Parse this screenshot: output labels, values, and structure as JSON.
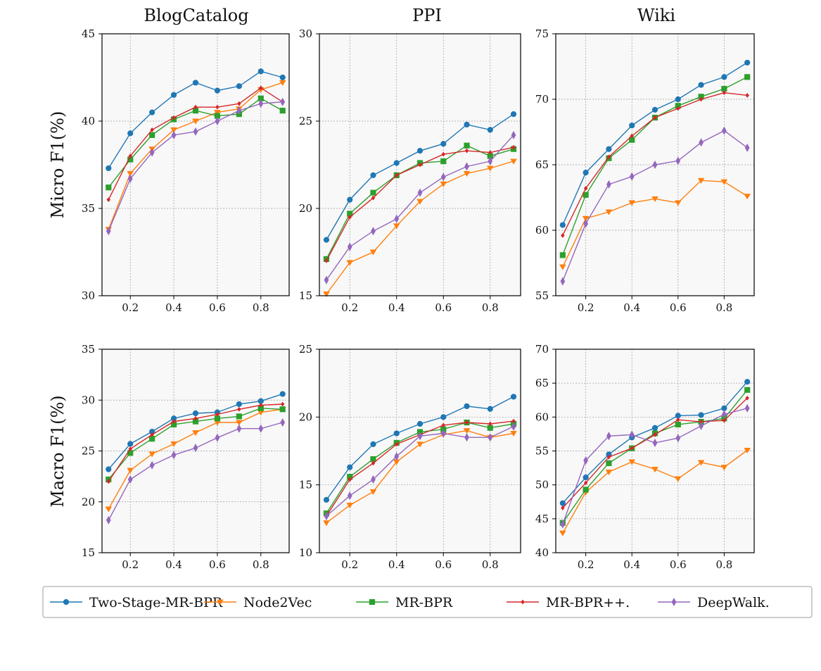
{
  "row_labels": [
    "Micro F1(%)",
    "Macro F1(%)"
  ],
  "column_titles": [
    "BlogCatalog",
    "PPI",
    "Wiki"
  ],
  "legend": {
    "placement": "bottom",
    "items": [
      {
        "label": "Two-Stage-MR-BPR",
        "color": "#1f77b4",
        "marker": "circle"
      },
      {
        "label": "Node2Vec",
        "color": "#ff7f0e",
        "marker": "triangle-down"
      },
      {
        "label": "MR-BPR",
        "color": "#2ca02c",
        "marker": "square"
      },
      {
        "label": "MR-BPR++.",
        "color": "#d62728",
        "marker": "small-diamond"
      },
      {
        "label": "DeepWalk.",
        "color": "#9467bd",
        "marker": "thin-diamond"
      }
    ]
  },
  "chart_data": [
    {
      "type": "line",
      "title": "BlogCatalog",
      "ylabel": "Micro F1(%)",
      "xlabel": "",
      "x": [
        0.1,
        0.2,
        0.3,
        0.4,
        0.5,
        0.6,
        0.7,
        0.8,
        0.9
      ],
      "xlim": [
        0.07,
        0.93
      ],
      "ylim": [
        30,
        45
      ],
      "xticks": [
        "0.2",
        "0.4",
        "0.6",
        "0.8"
      ],
      "yticks": [
        "30",
        "35",
        "40",
        "45"
      ],
      "grid": true,
      "series": [
        {
          "name": "Two-Stage-MR-BPR",
          "values": [
            37.3,
            39.3,
            40.5,
            41.5,
            42.2,
            41.75,
            42.0,
            42.85,
            42.5
          ]
        },
        {
          "name": "Node2Vec",
          "values": [
            33.8,
            37.0,
            38.4,
            39.5,
            40.0,
            40.5,
            40.7,
            41.8,
            42.2
          ]
        },
        {
          "name": "MR-BPR",
          "values": [
            36.2,
            37.8,
            39.2,
            40.1,
            40.6,
            40.3,
            40.4,
            41.3,
            40.6
          ]
        },
        {
          "name": "MR-BPR++.",
          "values": [
            35.5,
            38.0,
            39.5,
            40.2,
            40.8,
            40.8,
            41.0,
            41.9,
            41.1
          ]
        },
        {
          "name": "DeepWalk.",
          "values": [
            33.7,
            36.7,
            38.2,
            39.2,
            39.4,
            40.0,
            40.6,
            41.0,
            41.1
          ]
        }
      ]
    },
    {
      "type": "line",
      "title": "PPI",
      "ylabel": "",
      "xlabel": "",
      "x": [
        0.1,
        0.2,
        0.3,
        0.4,
        0.5,
        0.6,
        0.7,
        0.8,
        0.9
      ],
      "xlim": [
        0.07,
        0.93
      ],
      "ylim": [
        15,
        30
      ],
      "xticks": [
        "0.2",
        "0.4",
        "0.6",
        "0.8"
      ],
      "yticks": [
        "15",
        "20",
        "25",
        "30"
      ],
      "grid": true,
      "series": [
        {
          "name": "Two-Stage-MR-BPR",
          "values": [
            18.2,
            20.5,
            21.9,
            22.6,
            23.3,
            23.7,
            24.8,
            24.5,
            25.4
          ]
        },
        {
          "name": "Node2Vec",
          "values": [
            15.1,
            16.9,
            17.5,
            19.0,
            20.4,
            21.4,
            22.0,
            22.3,
            22.7
          ]
        },
        {
          "name": "MR-BPR",
          "values": [
            17.1,
            19.7,
            20.9,
            21.9,
            22.6,
            22.7,
            23.6,
            23.0,
            23.4
          ]
        },
        {
          "name": "MR-BPR++.",
          "values": [
            17.0,
            19.5,
            20.6,
            21.9,
            22.5,
            23.1,
            23.3,
            23.2,
            23.5
          ]
        },
        {
          "name": "DeepWalk.",
          "values": [
            15.9,
            17.8,
            18.7,
            19.4,
            20.9,
            21.8,
            22.4,
            22.7,
            24.2
          ]
        }
      ]
    },
    {
      "type": "line",
      "title": "Wiki",
      "ylabel": "",
      "xlabel": "",
      "x": [
        0.1,
        0.2,
        0.3,
        0.4,
        0.5,
        0.6,
        0.7,
        0.8,
        0.9
      ],
      "xlim": [
        0.07,
        0.93
      ],
      "ylim": [
        55,
        75
      ],
      "xticks": [
        "0.2",
        "0.4",
        "0.6",
        "0.8"
      ],
      "yticks": [
        "55",
        "60",
        "65",
        "70",
        "75"
      ],
      "grid": true,
      "series": [
        {
          "name": "Two-Stage-MR-BPR",
          "values": [
            60.4,
            64.4,
            66.2,
            68.0,
            69.2,
            70.0,
            71.1,
            71.7,
            72.8
          ]
        },
        {
          "name": "Node2Vec",
          "values": [
            57.2,
            60.9,
            61.4,
            62.1,
            62.4,
            62.1,
            63.8,
            63.7,
            62.6
          ]
        },
        {
          "name": "MR-BPR",
          "values": [
            58.1,
            62.7,
            65.5,
            66.9,
            68.6,
            69.5,
            70.2,
            70.8,
            71.7
          ]
        },
        {
          "name": "MR-BPR++.",
          "values": [
            59.6,
            63.2,
            65.6,
            67.2,
            68.6,
            69.3,
            70.0,
            70.5,
            70.3
          ]
        },
        {
          "name": "DeepWalk.",
          "values": [
            56.1,
            60.5,
            63.5,
            64.1,
            65.0,
            65.3,
            66.7,
            67.6,
            66.3
          ]
        }
      ]
    },
    {
      "type": "line",
      "title": "",
      "ylabel": "Macro F1(%)",
      "xlabel": "",
      "x": [
        0.1,
        0.2,
        0.3,
        0.4,
        0.5,
        0.6,
        0.7,
        0.8,
        0.9
      ],
      "xlim": [
        0.07,
        0.93
      ],
      "ylim": [
        15,
        35
      ],
      "xticks": [
        "0.2",
        "0.4",
        "0.6",
        "0.8"
      ],
      "yticks": [
        "15",
        "20",
        "25",
        "30",
        "35"
      ],
      "grid": true,
      "series": [
        {
          "name": "Two-Stage-MR-BPR",
          "values": [
            23.2,
            25.7,
            26.9,
            28.2,
            28.7,
            28.8,
            29.6,
            29.9,
            30.6
          ]
        },
        {
          "name": "Node2Vec",
          "values": [
            19.3,
            23.1,
            24.7,
            25.7,
            26.8,
            27.8,
            27.8,
            28.8,
            29.1
          ]
        },
        {
          "name": "MR-BPR",
          "values": [
            22.2,
            24.8,
            26.2,
            27.6,
            27.9,
            28.2,
            28.4,
            29.2,
            29.1
          ]
        },
        {
          "name": "MR-BPR++.",
          "values": [
            22.0,
            25.2,
            26.6,
            27.9,
            28.2,
            28.6,
            29.1,
            29.5,
            29.6
          ]
        },
        {
          "name": "DeepWalk.",
          "values": [
            18.2,
            22.2,
            23.6,
            24.6,
            25.3,
            26.3,
            27.2,
            27.2,
            27.8
          ]
        }
      ]
    },
    {
      "type": "line",
      "title": "",
      "ylabel": "",
      "xlabel": "",
      "x": [
        0.1,
        0.2,
        0.3,
        0.4,
        0.5,
        0.6,
        0.7,
        0.8,
        0.9
      ],
      "xlim": [
        0.07,
        0.93
      ],
      "ylim": [
        10,
        25
      ],
      "xticks": [
        "0.2",
        "0.4",
        "0.6",
        "0.8"
      ],
      "yticks": [
        "10",
        "15",
        "20",
        "25"
      ],
      "grid": true,
      "series": [
        {
          "name": "Two-Stage-MR-BPR",
          "values": [
            13.9,
            16.3,
            18.0,
            18.8,
            19.5,
            20.0,
            20.8,
            20.6,
            21.5
          ]
        },
        {
          "name": "Node2Vec",
          "values": [
            12.2,
            13.5,
            14.5,
            16.7,
            18.0,
            18.7,
            19.0,
            18.5,
            18.8
          ]
        },
        {
          "name": "MR-BPR",
          "values": [
            12.9,
            15.6,
            16.9,
            18.1,
            18.9,
            19.1,
            19.6,
            19.2,
            19.5
          ]
        },
        {
          "name": "MR-BPR++.",
          "values": [
            12.7,
            15.4,
            16.6,
            18.0,
            18.7,
            19.4,
            19.6,
            19.5,
            19.7
          ]
        },
        {
          "name": "DeepWalk.",
          "values": [
            12.7,
            14.2,
            15.4,
            17.1,
            18.6,
            18.8,
            18.5,
            18.5,
            19.3
          ]
        }
      ]
    },
    {
      "type": "line",
      "title": "",
      "ylabel": "",
      "xlabel": "",
      "x": [
        0.1,
        0.2,
        0.3,
        0.4,
        0.5,
        0.6,
        0.7,
        0.8,
        0.9
      ],
      "xlim": [
        0.07,
        0.93
      ],
      "ylim": [
        40,
        70
      ],
      "xticks": [
        "0.2",
        "0.4",
        "0.6",
        "0.8"
      ],
      "yticks": [
        "40",
        "45",
        "50",
        "55",
        "60",
        "65",
        "70"
      ],
      "grid": true,
      "series": [
        {
          "name": "Two-Stage-MR-BPR",
          "values": [
            47.3,
            51.1,
            54.5,
            57.0,
            58.4,
            60.2,
            60.3,
            61.3,
            65.2
          ]
        },
        {
          "name": "Node2Vec",
          "values": [
            42.9,
            48.9,
            51.9,
            53.4,
            52.3,
            50.9,
            53.3,
            52.6,
            55.1
          ]
        },
        {
          "name": "MR-BPR",
          "values": [
            44.4,
            49.3,
            53.2,
            55.4,
            57.6,
            58.9,
            59.3,
            59.8,
            64.0
          ]
        },
        {
          "name": "MR-BPR++.",
          "values": [
            46.6,
            50.3,
            54.1,
            55.4,
            57.4,
            59.6,
            59.3,
            59.5,
            62.8
          ]
        },
        {
          "name": "DeepWalk.",
          "values": [
            44.2,
            53.6,
            57.2,
            57.4,
            56.2,
            56.9,
            58.7,
            60.4,
            61.3
          ]
        }
      ]
    }
  ]
}
